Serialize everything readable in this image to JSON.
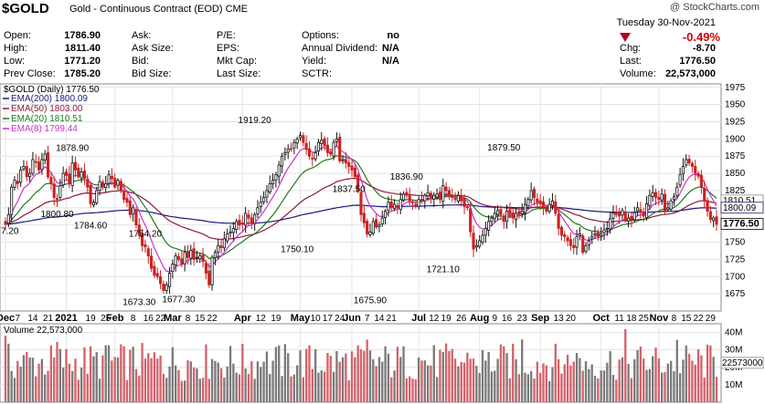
{
  "header": {
    "symbol": "$GOLD",
    "description": "Gold - Continuous Contract (EOD)",
    "exchange": "CME",
    "watermark": "@ StockCharts.com",
    "date": "Tuesday  30-Nov-2021",
    "change_pct": "-0.49%",
    "fields": [
      {
        "label": "Open:",
        "value": "1786.90"
      },
      {
        "label": "High:",
        "value": "1811.40"
      },
      {
        "label": "Low:",
        "value": "1771.20"
      },
      {
        "label": "Prev Close:",
        "value": "1785.20"
      },
      {
        "label": "Ask:",
        "value": ""
      },
      {
        "label": "Ask Size:",
        "value": ""
      },
      {
        "label": "Bid:",
        "value": ""
      },
      {
        "label": "Bid Size:",
        "value": ""
      },
      {
        "label": "P/E:",
        "value": ""
      },
      {
        "label": "EPS:",
        "value": ""
      },
      {
        "label": "Mkt Cap:",
        "value": ""
      },
      {
        "label": "Last Size:",
        "value": ""
      },
      {
        "label": "Options:",
        "value": "no"
      },
      {
        "label": "Annual Dividend:",
        "value": "N/A"
      },
      {
        "label": "Yield:",
        "value": "N/A"
      },
      {
        "label": "SCTR:",
        "value": ""
      }
    ],
    "right": [
      {
        "label": "Chg:",
        "value": "-8.70"
      },
      {
        "label": "Last:",
        "value": "1776.50"
      },
      {
        "label": "Volume:",
        "value": "22,573,000"
      }
    ]
  },
  "chart_data": {
    "type": "candlestick",
    "title": "$GOLD (Daily) 1776.50",
    "price_axis": {
      "min": 1650,
      "max": 1980,
      "ticks": [
        1675,
        1700,
        1725,
        1750,
        1775,
        1800,
        1825,
        1850,
        1875,
        1900,
        1925,
        1950,
        1975
      ]
    },
    "price_labels_right": [
      "1810.51",
      "1800.09",
      "1776.50"
    ],
    "left_edge_label": "7.20",
    "legend": [
      {
        "name": "EMA(200) 1800.09",
        "color": "#1a1a7a"
      },
      {
        "name": "EMA(50) 1803.00",
        "color": "#8b1a3a"
      },
      {
        "name": "EMA(20) 1810.51",
        "color": "#1f7a1f"
      },
      {
        "name": "EMA(8) 1799.44",
        "color": "#cc33cc"
      }
    ],
    "annotations": [
      {
        "text": "1878.90",
        "i": 22,
        "v": 1878.9
      },
      {
        "text": "1800.80",
        "i": 17,
        "v": 1800.8
      },
      {
        "text": "1784.60",
        "i": 28,
        "v": 1784.6
      },
      {
        "text": "1754.20",
        "i": 46,
        "v": 1754.2
      },
      {
        "text": "1673.30",
        "i": 44,
        "v": 1673.3
      },
      {
        "text": "1677.30",
        "i": 57,
        "v": 1677.3
      },
      {
        "text": "1919.20",
        "i": 82,
        "v": 1919.2
      },
      {
        "text": "1750.10",
        "i": 96,
        "v": 1750.1
      },
      {
        "text": "1837.50",
        "i": 113,
        "v": 1837.5
      },
      {
        "text": "1675.90",
        "i": 120,
        "v": 1675.9
      },
      {
        "text": "1836.90",
        "i": 132,
        "v": 1836.9
      },
      {
        "text": "1721.10",
        "i": 144,
        "v": 1721.1
      },
      {
        "text": "1879.50",
        "i": 164,
        "v": 1879.5
      }
    ],
    "x_ticks": [
      {
        "label": "Dec",
        "i": 0,
        "bold": true
      },
      {
        "label": "7",
        "i": 4
      },
      {
        "label": "14",
        "i": 9
      },
      {
        "label": "21",
        "i": 14
      },
      {
        "label": "2021",
        "i": 20,
        "bold": true
      },
      {
        "label": "19",
        "i": 28
      },
      {
        "label": "25",
        "i": 33
      },
      {
        "label": "Feb",
        "i": 36,
        "bold": true
      },
      {
        "label": "8",
        "i": 42
      },
      {
        "label": "16",
        "i": 47
      },
      {
        "label": "22",
        "i": 51
      },
      {
        "label": "Mar",
        "i": 55,
        "bold": true
      },
      {
        "label": "8",
        "i": 60
      },
      {
        "label": "15",
        "i": 64
      },
      {
        "label": "22",
        "i": 68
      },
      {
        "label": "Apr",
        "i": 78,
        "bold": true
      },
      {
        "label": "12",
        "i": 84
      },
      {
        "label": "19",
        "i": 89
      },
      {
        "label": "May",
        "i": 97,
        "bold": true
      },
      {
        "label": "10",
        "i": 102
      },
      {
        "label": "17",
        "i": 106
      },
      {
        "label": "24",
        "i": 110
      },
      {
        "label": "Jun",
        "i": 114,
        "bold": true
      },
      {
        "label": "7",
        "i": 119
      },
      {
        "label": "14",
        "i": 123
      },
      {
        "label": "21",
        "i": 127
      },
      {
        "label": "Jul",
        "i": 136,
        "bold": true
      },
      {
        "label": "12",
        "i": 141
      },
      {
        "label": "19",
        "i": 145
      },
      {
        "label": "26",
        "i": 150
      },
      {
        "label": "Aug",
        "i": 156,
        "bold": true
      },
      {
        "label": "9",
        "i": 161
      },
      {
        "label": "16",
        "i": 165
      },
      {
        "label": "23",
        "i": 170
      },
      {
        "label": "Sep",
        "i": 176,
        "bold": true
      },
      {
        "label": "13",
        "i": 182
      },
      {
        "label": "20",
        "i": 186
      },
      {
        "label": "Oct",
        "i": 196,
        "bold": true
      },
      {
        "label": "11",
        "i": 202
      },
      {
        "label": "18",
        "i": 206
      },
      {
        "label": "25",
        "i": 210
      },
      {
        "label": "Nov",
        "i": 215,
        "bold": true
      },
      {
        "label": "8",
        "i": 220
      },
      {
        "label": "15",
        "i": 224
      },
      {
        "label": "22",
        "i": 228
      },
      {
        "label": "29",
        "i": 232
      }
    ],
    "volume": {
      "title": "Volume 22,573,000",
      "max_millions": 45,
      "ticks": [
        "40M",
        "30M",
        "20M",
        "10M"
      ],
      "last_label": "22573000"
    },
    "closes": [
      1776,
      1790,
      1830,
      1840,
      1835,
      1855,
      1860,
      1845,
      1850,
      1870,
      1866,
      1855,
      1870,
      1878,
      1845,
      1835,
      1815,
      1812,
      1832,
      1850,
      1847,
      1835,
      1865,
      1855,
      1845,
      1852,
      1843,
      1830,
      1806,
      1808,
      1825,
      1838,
      1830,
      1835,
      1848,
      1842,
      1830,
      1840,
      1826,
      1812,
      1808,
      1790,
      1800,
      1775,
      1760,
      1745,
      1743,
      1730,
      1712,
      1702,
      1700,
      1690,
      1680,
      1688,
      1705,
      1718,
      1730,
      1725,
      1718,
      1735,
      1728,
      1738,
      1725,
      1728,
      1730,
      1722,
      1705,
      1688,
      1728,
      1735,
      1745,
      1742,
      1755,
      1762,
      1765,
      1770,
      1780,
      1775,
      1776,
      1792,
      1785,
      1778,
      1790,
      1800,
      1808,
      1815,
      1825,
      1835,
      1840,
      1848,
      1862,
      1875,
      1880,
      1885,
      1885,
      1895,
      1900,
      1905,
      1895,
      1885,
      1875,
      1872,
      1880,
      1895,
      1898,
      1890,
      1880,
      1878,
      1895,
      1900,
      1868,
      1870,
      1865,
      1860,
      1855,
      1845,
      1825,
      1790,
      1778,
      1762,
      1765,
      1780,
      1772,
      1775,
      1785,
      1795,
      1808,
      1800,
      1805,
      1800,
      1812,
      1820,
      1818,
      1810,
      1808,
      1805,
      1812,
      1810,
      1818,
      1822,
      1815,
      1818,
      1820,
      1812,
      1832,
      1825,
      1818,
      1815,
      1812,
      1818,
      1810,
      1802,
      1800,
      1765,
      1740,
      1745,
      1752,
      1760,
      1770,
      1780,
      1785,
      1792,
      1796,
      1790,
      1780,
      1795,
      1790,
      1785,
      1792,
      1790,
      1795,
      1805,
      1812,
      1825,
      1815,
      1808,
      1806,
      1800,
      1795,
      1805,
      1810,
      1792,
      1770,
      1760,
      1758,
      1752,
      1745,
      1742,
      1758,
      1762,
      1735,
      1745,
      1752,
      1758,
      1762,
      1758,
      1762,
      1768,
      1770,
      1784,
      1792,
      1790,
      1788,
      1796,
      1782,
      1785,
      1782,
      1793,
      1800,
      1795,
      1788,
      1806,
      1818,
      1822,
      1815,
      1812,
      1820,
      1795,
      1800,
      1810,
      1816,
      1830,
      1848,
      1860,
      1870,
      1865,
      1860,
      1850,
      1846,
      1830,
      1810,
      1795,
      1783,
      1785,
      1776
    ]
  }
}
